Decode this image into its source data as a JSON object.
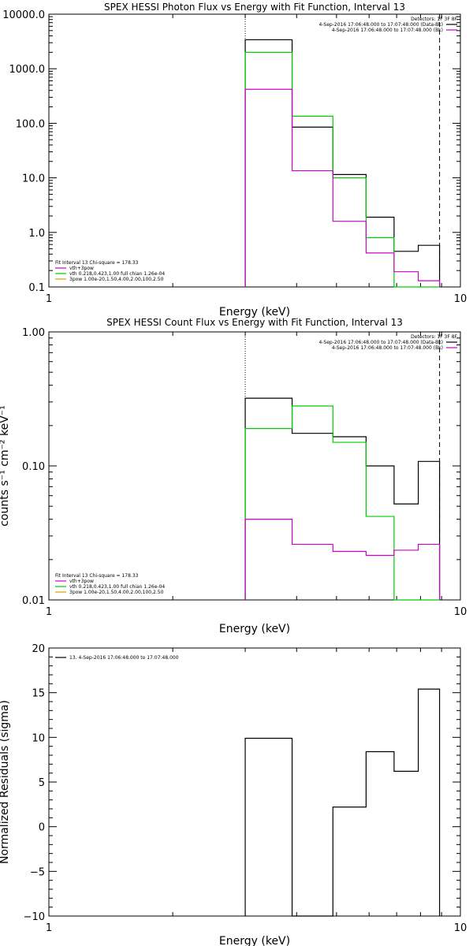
{
  "colors": {
    "data": "#000000",
    "vth_vpow": "#cc00cc",
    "vth": "#00cc00",
    "vpow": "#d4a000",
    "background": "#ffffff"
  },
  "chart_data": [
    {
      "type": "line",
      "title": "SPEX HESSI Photon Flux vs Energy with Fit Function, Interval 13",
      "xlabel": "Energy (keV)",
      "ylabel": "",
      "xscale": "log",
      "yscale": "log",
      "xlim": [
        1,
        10
      ],
      "ylim": [
        0.1,
        10000
      ],
      "x_ticks": [
        "1",
        "10"
      ],
      "y_ticks": [
        "10000.0",
        "1000.0",
        "100.0",
        "10.0",
        "1.0",
        "0.1"
      ],
      "y_tick_values": [
        10000,
        1000,
        100,
        10,
        1,
        0.1
      ],
      "x_bin_edges": [
        3.0,
        3.9,
        4.9,
        5.9,
        6.9,
        7.9,
        8.9
      ],
      "legend_top": {
        "header": "Detectors: 1F 3F 8F",
        "entries": [
          {
            "label": "4-Sep-2016 17:06:48.000 to 17:07:48.000 (Data-Bk)",
            "color": "#000000"
          },
          {
            "label": "4-Sep-2016 17:06:48.000 to 17:07:48.000 (Bk)",
            "color": "#cc00cc"
          }
        ]
      },
      "legend_bottom": {
        "header": "Fit Interval 13   Chi-square = 178.33",
        "entries": [
          {
            "label": "vth+3pow",
            "color": "#cc00cc"
          },
          {
            "label": "vth 0.218,0.423,1.00  full chian 1.26e-04",
            "color": "#00cc00"
          },
          {
            "label": "3pow 1.00e-20,1.50,4.00,2.00,100,2.50",
            "color": "#d4a000"
          }
        ]
      },
      "vlines": [
        {
          "x": 3.0,
          "style": "dotted"
        },
        {
          "x": 8.9,
          "style": "dashed"
        }
      ],
      "series": [
        {
          "name": "Data-Bk",
          "color": "#000000",
          "values": [
            3400,
            85,
            11.5,
            1.9,
            0.45,
            0.58
          ]
        },
        {
          "name": "vth",
          "color": "#00cc00",
          "values": [
            2000,
            135,
            10,
            0.8,
            0.08,
            0.08
          ]
        },
        {
          "name": "Bk",
          "color": "#cc00cc",
          "values": [
            420,
            13.5,
            1.6,
            0.42,
            0.19,
            0.13
          ]
        }
      ]
    },
    {
      "type": "line",
      "title": "SPEX HESSI Count Flux vs Energy with Fit Function, Interval 13",
      "xlabel": "Energy (keV)",
      "ylabel": "counts s⁻¹ cm⁻² keV⁻¹",
      "xscale": "log",
      "yscale": "log",
      "xlim": [
        1,
        10
      ],
      "ylim": [
        0.01,
        1.0
      ],
      "x_ticks": [
        "1",
        "10"
      ],
      "y_ticks": [
        "1.00",
        "0.10",
        "0.01"
      ],
      "y_tick_values": [
        1.0,
        0.1,
        0.01
      ],
      "x_bin_edges": [
        3.0,
        3.9,
        4.9,
        5.9,
        6.9,
        7.9,
        8.9
      ],
      "legend_top": {
        "header": "Detectors: 1F 3F 8F",
        "entries": [
          {
            "label": "4-Sep-2016 17:06:48.000 to 17:07:48.000 (Data-Bk)",
            "color": "#000000"
          },
          {
            "label": "4-Sep-2016 17:06:48.000 to 17:07:48.000 (Bk)",
            "color": "#cc00cc"
          }
        ]
      },
      "legend_bottom": {
        "header": "Fit Interval 13   Chi-square = 178.33",
        "entries": [
          {
            "label": "vth+3pow",
            "color": "#cc00cc"
          },
          {
            "label": "vth 0.218,0.423,1.00  full chian 1.26e-04",
            "color": "#00cc00"
          },
          {
            "label": "3pow 1.00e-20,1.50,4.00,2.00,100,2.50",
            "color": "#d4a000"
          }
        ]
      },
      "vlines": [
        {
          "x": 3.0,
          "style": "dotted"
        },
        {
          "x": 8.9,
          "style": "dashed"
        }
      ],
      "series": [
        {
          "name": "Data-Bk",
          "color": "#000000",
          "values": [
            0.32,
            0.175,
            0.165,
            0.1,
            0.052,
            0.108
          ]
        },
        {
          "name": "vth",
          "color": "#00cc00",
          "values": [
            0.19,
            0.28,
            0.15,
            0.042,
            0.008,
            0.008
          ]
        },
        {
          "name": "Bk",
          "color": "#cc00cc",
          "values": [
            0.04,
            0.026,
            0.023,
            0.0215,
            0.0235,
            0.026
          ]
        }
      ]
    },
    {
      "type": "line",
      "title": "",
      "xlabel": "Energy (keV)",
      "ylabel": "Normalized Residuals (sigma)",
      "xscale": "log",
      "yscale": "linear",
      "xlim": [
        1,
        10
      ],
      "ylim": [
        -10,
        20
      ],
      "x_ticks": [
        "1",
        "10"
      ],
      "y_ticks": [
        "20",
        "15",
        "10",
        "5",
        "0",
        "−5",
        "−10"
      ],
      "y_tick_values": [
        20,
        15,
        10,
        5,
        0,
        -5,
        -10
      ],
      "x_bin_edges": [
        3.0,
        3.9,
        4.9,
        5.9,
        6.9,
        7.9,
        8.9
      ],
      "legend_top": {
        "header": "",
        "entries": [
          {
            "label": "13.  4-Sep-2016 17:06:48.000 to 17:07:48.000",
            "color": "#000000"
          }
        ]
      },
      "vlines": [],
      "series": [
        {
          "name": "13",
          "color": "#000000",
          "values": [
            9.9,
            -10,
            2.2,
            8.4,
            6.2,
            15.4
          ]
        }
      ]
    }
  ]
}
